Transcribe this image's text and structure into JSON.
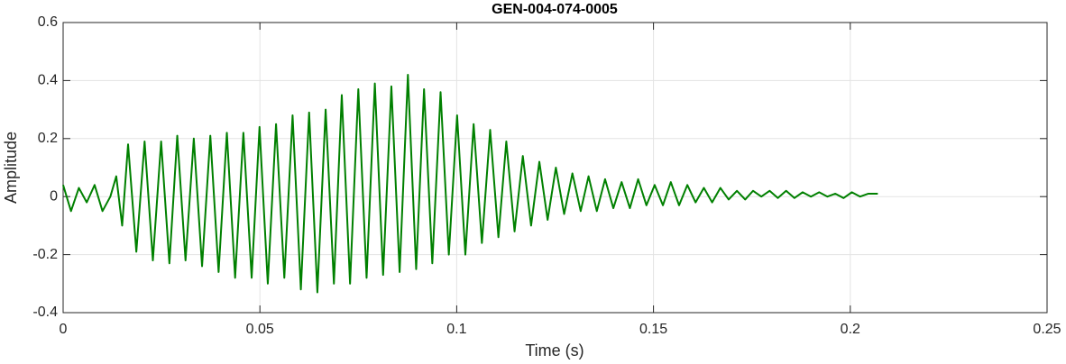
{
  "chart_data": {
    "type": "line",
    "title": "GEN-004-074-0005",
    "xlabel": "Time (s)",
    "ylabel": "Amplitude",
    "xlim": [
      0,
      0.25
    ],
    "xticks": [
      0,
      0.05,
      0.1,
      0.15,
      0.2,
      0.25
    ],
    "ylim": [
      -0.4,
      0.6
    ],
    "yticks": [
      -0.4,
      -0.2,
      0,
      0.2,
      0.4,
      0.6
    ],
    "grid": true,
    "series": [
      {
        "color": "#008000",
        "x": [
          0,
          0.002,
          0.004,
          0.006,
          0.008,
          0.01,
          0.012,
          0.0135,
          0.015,
          0.0165,
          0.0186,
          0.0207,
          0.0228,
          0.0249,
          0.027,
          0.029,
          0.0311,
          0.0332,
          0.0353,
          0.0374,
          0.0395,
          0.0416,
          0.0437,
          0.0458,
          0.0479,
          0.0499,
          0.052,
          0.0541,
          0.0562,
          0.0583,
          0.0604,
          0.0625,
          0.0646,
          0.0667,
          0.0688,
          0.0708,
          0.0729,
          0.075,
          0.0771,
          0.0792,
          0.0813,
          0.0834,
          0.0855,
          0.0876,
          0.0897,
          0.0917,
          0.0938,
          0.0959,
          0.098,
          0.1001,
          0.1022,
          0.1043,
          0.1064,
          0.1085,
          0.1106,
          0.1126,
          0.1147,
          0.1168,
          0.1189,
          0.121,
          0.1231,
          0.1252,
          0.1273,
          0.1294,
          0.1315,
          0.1335,
          0.1356,
          0.1377,
          0.1398,
          0.1419,
          0.144,
          0.1461,
          0.1482,
          0.1503,
          0.1524,
          0.1544,
          0.1565,
          0.1586,
          0.1607,
          0.1628,
          0.1649,
          0.167,
          0.1691,
          0.1712,
          0.1733,
          0.1753,
          0.1774,
          0.1795,
          0.1816,
          0.1837,
          0.1858,
          0.1879,
          0.19,
          0.1921,
          0.1942,
          0.1962,
          0.1983,
          0.2004,
          0.2025,
          0.2046,
          0.207
        ],
        "values": [
          0.04,
          -0.05,
          0.03,
          -0.02,
          0.04,
          -0.05,
          0.0,
          0.07,
          -0.1,
          0.18,
          -0.19,
          0.19,
          -0.22,
          0.19,
          -0.23,
          0.21,
          -0.22,
          0.2,
          -0.24,
          0.21,
          -0.26,
          0.22,
          -0.28,
          0.22,
          -0.28,
          0.24,
          -0.3,
          0.25,
          -0.28,
          0.28,
          -0.32,
          0.29,
          -0.33,
          0.3,
          -0.3,
          0.35,
          -0.3,
          0.37,
          -0.28,
          0.39,
          -0.27,
          0.38,
          -0.26,
          0.42,
          -0.25,
          0.37,
          -0.23,
          0.36,
          -0.2,
          0.28,
          -0.2,
          0.25,
          -0.16,
          0.23,
          -0.14,
          0.19,
          -0.12,
          0.14,
          -0.1,
          0.12,
          -0.08,
          0.1,
          -0.06,
          0.08,
          -0.05,
          0.07,
          -0.05,
          0.06,
          -0.04,
          0.05,
          -0.04,
          0.06,
          -0.03,
          0.04,
          -0.03,
          0.05,
          -0.03,
          0.04,
          -0.02,
          0.03,
          -0.02,
          0.03,
          -0.01,
          0.02,
          -0.01,
          0.02,
          0.0,
          0.02,
          -0.005,
          0.02,
          -0.005,
          0.015,
          0.0,
          0.015,
          0.0,
          0.01,
          -0.005,
          0.015,
          0.0,
          0.01,
          0.01
        ]
      }
    ]
  }
}
